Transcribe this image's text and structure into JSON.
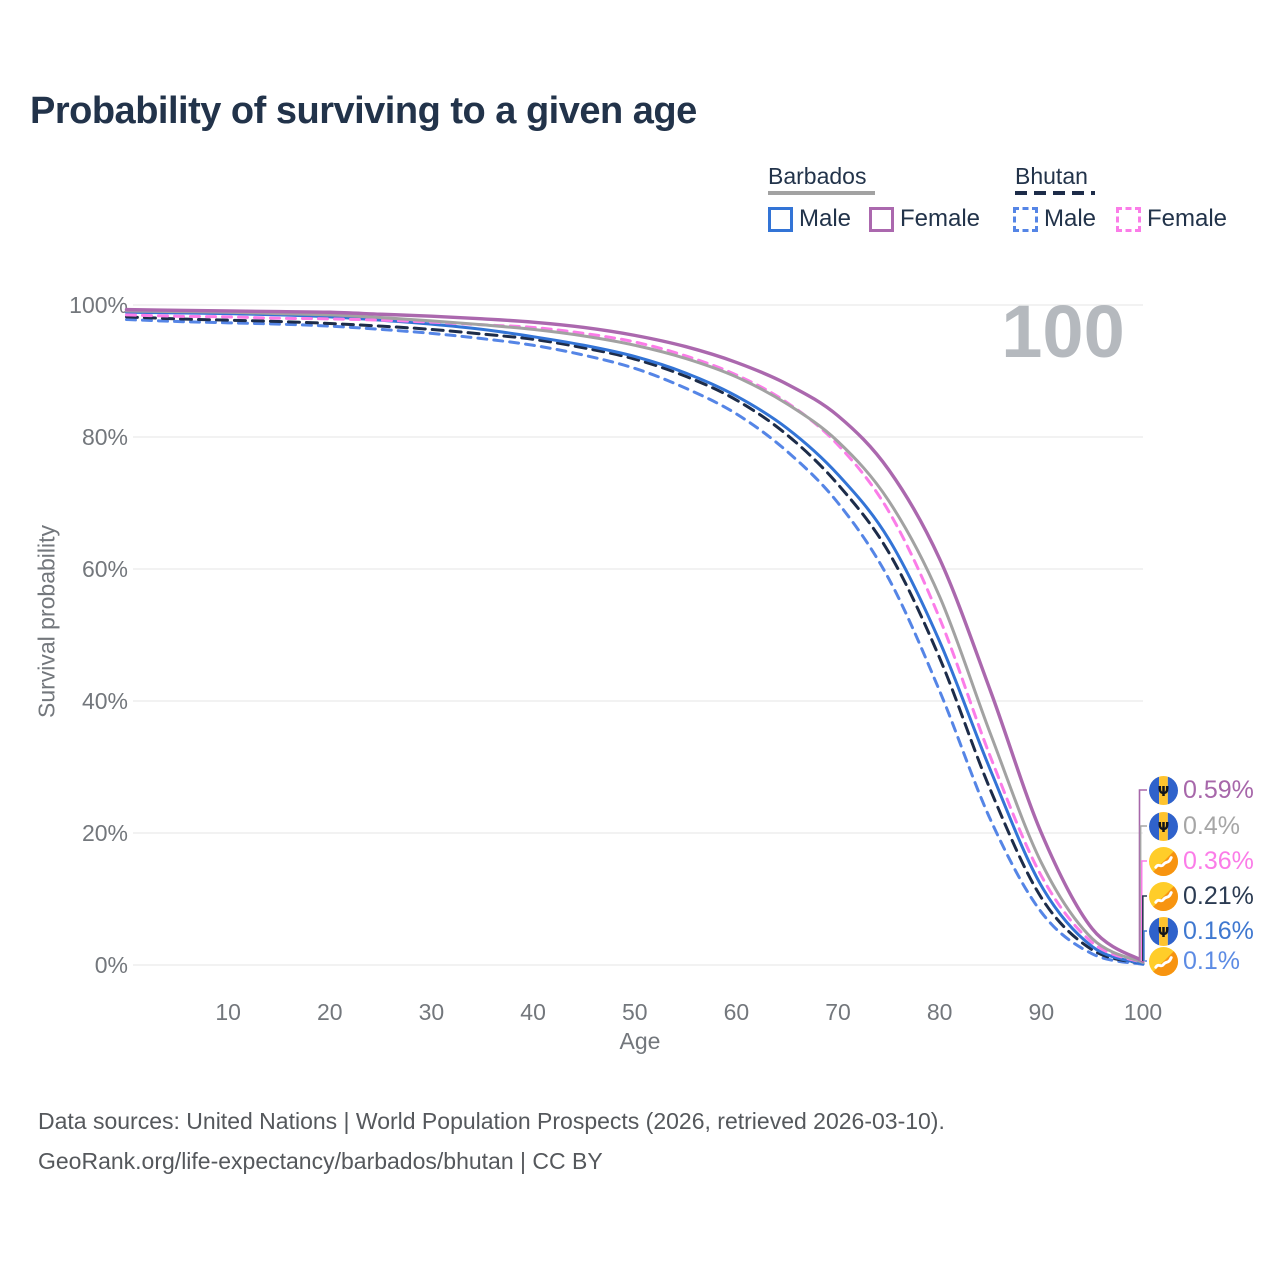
{
  "title": "Probability of surviving to a given age",
  "watermark": "100",
  "legend": {
    "groups": [
      {
        "label": "Barbados",
        "line_style": "solid",
        "line_color": "#a2a2a2",
        "items": [
          {
            "label": "Male",
            "color": "#3374d6",
            "dashed": false
          },
          {
            "label": "Female",
            "color": "#ab68ae",
            "dashed": false
          }
        ]
      },
      {
        "label": "Bhutan",
        "line_style": "dashed",
        "line_color": "#1d2c49",
        "items": [
          {
            "label": "Male",
            "color": "#5585e6",
            "dashed": true
          },
          {
            "label": "Female",
            "color": "#fb7ce8",
            "dashed": true
          }
        ]
      }
    ]
  },
  "axes": {
    "x_label": "Age",
    "y_label": "Survival probability",
    "x_ticks": [
      10,
      20,
      30,
      40,
      50,
      60,
      70,
      80,
      90,
      100
    ],
    "y_ticks": [
      "100%",
      "80%",
      "60%",
      "40%",
      "20%",
      "0%"
    ],
    "x_range": [
      0,
      100
    ],
    "y_range": [
      0,
      100
    ],
    "grid": true,
    "gridline_color": "#e9eaeb"
  },
  "chart_data": {
    "type": "line",
    "title": "Probability of surviving to a given age",
    "xlabel": "Age",
    "ylabel": "Survival probability",
    "legend_position": "top-right",
    "x_ages": [
      0,
      5,
      10,
      15,
      20,
      25,
      30,
      35,
      40,
      45,
      50,
      55,
      60,
      65,
      70,
      75,
      80,
      85,
      90,
      95,
      100
    ],
    "series": [
      {
        "id": "bhutan-male",
        "name": "Bhutan Male",
        "country": "Bhutan",
        "sex": "Male",
        "color": "#5585e6",
        "dashed": true,
        "end_label": "0.1%",
        "values": [
          97.8,
          97.5,
          97.3,
          97.1,
          96.8,
          96.3,
          95.7,
          94.9,
          93.9,
          92.4,
          90.4,
          87.4,
          83.5,
          77.8,
          70.0,
          58.5,
          41.5,
          22.0,
          8.0,
          1.7,
          0.1
        ]
      },
      {
        "id": "bhutan-all",
        "name": "Bhutan",
        "country": "Bhutan",
        "sex": "Both",
        "color": "#1d2c49",
        "dashed": true,
        "end_label": "0.21%",
        "values": [
          98.2,
          97.9,
          97.7,
          97.5,
          97.2,
          96.8,
          96.3,
          95.6,
          94.8,
          93.5,
          91.8,
          89.2,
          85.6,
          80.3,
          72.8,
          62.5,
          46.5,
          26.5,
          10.2,
          2.3,
          0.21
        ]
      },
      {
        "id": "barbados-male",
        "name": "Barbados Male",
        "country": "Barbados",
        "sex": "Male",
        "color": "#3374d6",
        "dashed": false,
        "end_label": "0.16%",
        "values": [
          98.9,
          98.8,
          98.7,
          98.5,
          98.2,
          97.7,
          97.1,
          96.3,
          95.2,
          93.9,
          92.2,
          89.7,
          86.2,
          81.3,
          74.3,
          64.5,
          49.0,
          29.5,
          12.0,
          2.8,
          0.16
        ]
      },
      {
        "id": "bhutan-female",
        "name": "Bhutan Female",
        "country": "Bhutan",
        "sex": "Female",
        "color": "#fb7ce8",
        "dashed": true,
        "end_label": "0.36%",
        "values": [
          98.5,
          98.3,
          98.2,
          98.0,
          97.9,
          97.7,
          97.4,
          97.0,
          96.6,
          95.7,
          94.4,
          92.3,
          89.4,
          85.2,
          78.8,
          68.7,
          52.5,
          31.5,
          13.5,
          3.4,
          0.36
        ]
      },
      {
        "id": "barbados-all",
        "name": "Barbados",
        "country": "Barbados",
        "sex": "Both",
        "color": "#a2a2a2",
        "dashed": false,
        "end_label": "0.4%",
        "values": [
          99.1,
          99.0,
          98.9,
          98.7,
          98.5,
          98.1,
          97.6,
          97.0,
          96.3,
          95.3,
          93.9,
          91.9,
          89.1,
          85.0,
          79.3,
          70.3,
          55.8,
          35.0,
          15.5,
          4.0,
          0.4
        ]
      },
      {
        "id": "barbados-female",
        "name": "Barbados Female",
        "country": "Barbados",
        "sex": "Female",
        "color": "#ab68ae",
        "dashed": false,
        "end_label": "0.59%",
        "values": [
          99.3,
          99.2,
          99.1,
          99.0,
          98.9,
          98.6,
          98.3,
          97.9,
          97.4,
          96.6,
          95.4,
          93.7,
          91.3,
          88.0,
          83.2,
          75.0,
          61.5,
          41.5,
          20.0,
          5.5,
          0.59
        ]
      }
    ]
  },
  "end_labels": [
    {
      "flag": "barbados",
      "value": "0.59%",
      "color": "#a767aa"
    },
    {
      "flag": "barbados",
      "value": "0.4%",
      "color": "#a6a6a6"
    },
    {
      "flag": "bhutan",
      "value": "0.36%",
      "color": "#fb7ce8"
    },
    {
      "flag": "bhutan",
      "value": "0.21%",
      "color": "#2b3b52"
    },
    {
      "flag": "barbados",
      "value": "0.16%",
      "color": "#3f78d0"
    },
    {
      "flag": "bhutan",
      "value": "0.1%",
      "color": "#5c8be4"
    }
  ],
  "footer": {
    "line1": "Data sources: United Nations | World Population Prospects (2026, retrieved 2026-03-10).",
    "line2": "GeoRank.org/life-expectancy/barbados/bhutan | CC BY"
  }
}
